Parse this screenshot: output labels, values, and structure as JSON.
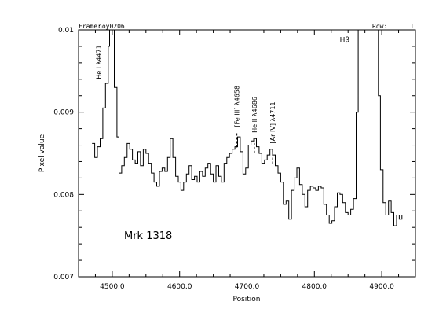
{
  "header": {
    "frame_label": "Frame:",
    "frame_value": "noy0206",
    "row_label": "Row:",
    "row_value": "1"
  },
  "chart_data": {
    "type": "line",
    "drawstyle": "steps",
    "title": "",
    "object_label": "Mrk  1318",
    "xlabel": "Position",
    "ylabel": "Pixel value",
    "xlim": [
      4450,
      4950
    ],
    "ylim": [
      0.007,
      0.01
    ],
    "xticks": [
      4500,
      4600,
      4700,
      4800,
      4900
    ],
    "xtick_labels": [
      "4500.0",
      "4600.0",
      "4700.0",
      "4800.0",
      "4900.0"
    ],
    "yticks": [
      0.007,
      0.008,
      0.009,
      0.01
    ],
    "ytick_labels": [
      "0.007",
      "0.008",
      "0.009",
      "0.01"
    ],
    "grid": false,
    "line_color": "#000000",
    "annotations": [
      {
        "text": "He I λ4471",
        "x": 4480,
        "y": 0.0094,
        "rotated": true,
        "dashed": false
      },
      {
        "text": "[Fe III] λ4658",
        "x": 4685,
        "y": 0.00882,
        "rotated": true,
        "dashed": true
      },
      {
        "text": "He II λ4686",
        "x": 4711,
        "y": 0.00875,
        "rotated": true,
        "dashed": true
      },
      {
        "text": "[Ar IV] λ4711",
        "x": 4738,
        "y": 0.00862,
        "rotated": true,
        "dashed": true
      },
      {
        "text": "Hβ",
        "x": 4845,
        "y": 0.00985,
        "rotated": false,
        "dashed": false
      }
    ],
    "series": [
      {
        "x": [
          4470,
          4474,
          4478,
          4482,
          4486,
          4490,
          4494,
          4496,
          4499,
          4503,
          4507,
          4510,
          4514,
          4518,
          4522,
          4526,
          4530,
          4534,
          4538,
          4542,
          4546,
          4550,
          4554,
          4558,
          4562,
          4566,
          4570,
          4574,
          4578,
          4582,
          4586,
          4590,
          4594,
          4598,
          4602,
          4606,
          4610,
          4614,
          4618,
          4622,
          4626,
          4630,
          4634,
          4638,
          4642,
          4646,
          4650,
          4654,
          4658,
          4662,
          4666,
          4670,
          4674,
          4678,
          4682,
          4686,
          4690,
          4694,
          4698,
          4702,
          4706,
          4710,
          4714,
          4718,
          4722,
          4726,
          4730,
          4734,
          4738,
          4742,
          4746,
          4750,
          4754,
          4758,
          4762,
          4766,
          4770,
          4774,
          4778,
          4782,
          4786,
          4790,
          4794,
          4798,
          4802,
          4806,
          4810,
          4814,
          4818,
          4822,
          4826,
          4830,
          4834,
          4838,
          4842,
          4846,
          4850,
          4854,
          4858,
          4862,
          4865,
          4868,
          4872,
          4876,
          4880,
          4884,
          4888,
          4892,
          4895,
          4898,
          4902,
          4906,
          4910,
          4914,
          4918,
          4922,
          4926,
          4930
        ],
        "y": [
          0.00862,
          0.00845,
          0.00858,
          0.00868,
          0.00905,
          0.00935,
          0.0098,
          0.0102,
          0.0102,
          0.0093,
          0.0087,
          0.00826,
          0.00835,
          0.00845,
          0.00862,
          0.00855,
          0.00842,
          0.00838,
          0.00852,
          0.00835,
          0.00855,
          0.0085,
          0.00838,
          0.00826,
          0.00815,
          0.0081,
          0.00828,
          0.00832,
          0.00828,
          0.00845,
          0.00868,
          0.00845,
          0.00822,
          0.00815,
          0.00805,
          0.00815,
          0.00825,
          0.00835,
          0.00818,
          0.00822,
          0.00815,
          0.00828,
          0.00822,
          0.00832,
          0.00838,
          0.00825,
          0.00815,
          0.00835,
          0.00822,
          0.00815,
          0.00838,
          0.00845,
          0.0085,
          0.00855,
          0.00858,
          0.0087,
          0.00852,
          0.00825,
          0.00832,
          0.0086,
          0.00865,
          0.00868,
          0.00858,
          0.0085,
          0.00838,
          0.00842,
          0.00848,
          0.00855,
          0.00848,
          0.00835,
          0.00826,
          0.00815,
          0.00788,
          0.00792,
          0.0077,
          0.00805,
          0.0082,
          0.00832,
          0.00812,
          0.008,
          0.00785,
          0.00805,
          0.0081,
          0.00808,
          0.00805,
          0.0081,
          0.00808,
          0.00788,
          0.00775,
          0.00765,
          0.00768,
          0.00785,
          0.00802,
          0.008,
          0.0079,
          0.00778,
          0.00775,
          0.00782,
          0.00795,
          0.009,
          0.0102,
          0.0102,
          0.0102,
          0.0102,
          0.0102,
          0.0102,
          0.0102,
          0.0102,
          0.0092,
          0.0083,
          0.0079,
          0.00775,
          0.00792,
          0.00778,
          0.00762,
          0.00775,
          0.0077,
          0.00775
        ]
      }
    ]
  }
}
